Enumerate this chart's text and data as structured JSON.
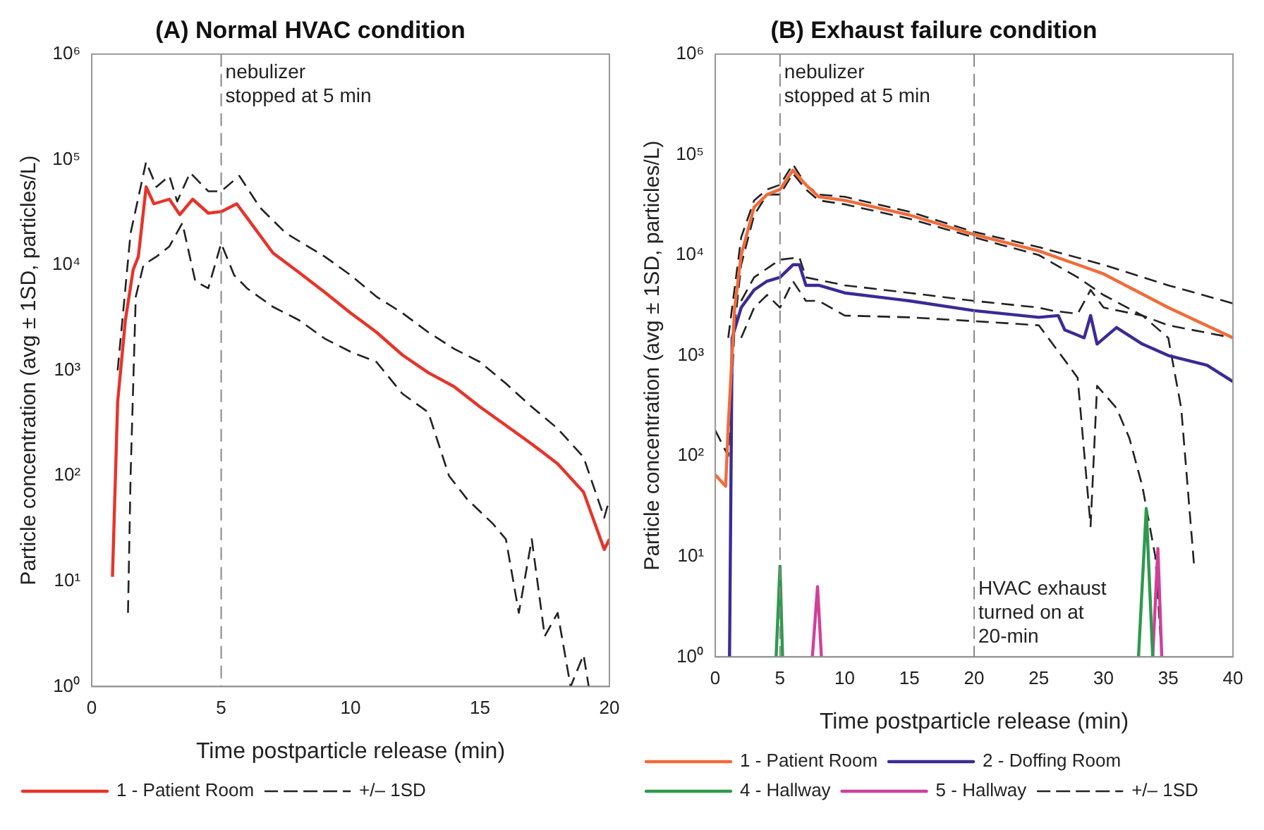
{
  "chart_data": [
    {
      "type": "line",
      "title": "(A) Normal HVAC condition",
      "xlabel": "Time postparticle release (min)",
      "ylabel": "Particle concentration (avg ± 1SD, particles/L)",
      "log": "y",
      "grid": false,
      "legend": "bottom",
      "marker": "none",
      "xlim": [
        0,
        20
      ],
      "xticks": [
        0,
        5,
        10,
        15,
        20
      ],
      "ylim": [
        1,
        1000000
      ],
      "yticks": [
        {
          "value": 1,
          "label": "10⁰"
        },
        {
          "value": 10,
          "label": "10¹"
        },
        {
          "value": 100,
          "label": "10²"
        },
        {
          "value": 1000,
          "label": "10³"
        },
        {
          "value": 10000,
          "label": "10⁴"
        },
        {
          "value": 100000,
          "label": "10⁵"
        },
        {
          "value": 1000000,
          "label": "10⁶"
        }
      ],
      "ref_lines": [
        {
          "axis": "x",
          "value": 5,
          "label": "nebulizer stopped at 5 min",
          "color": "#888888",
          "line_style": "dashed"
        }
      ],
      "series": [
        {
          "name": "1 - Patient Room",
          "color": "#e8332a",
          "line_style": "solid",
          "x": [
            0.8,
            1.0,
            1.3,
            1.6,
            1.8,
            2.1,
            2.4,
            3.0,
            3.4,
            3.9,
            4.5,
            5.0,
            5.6,
            6.0,
            7,
            8,
            9,
            10,
            11,
            12,
            13,
            14,
            15,
            16,
            17,
            18,
            19,
            19.8,
            20
          ],
          "values": [
            11,
            500,
            3000,
            9000,
            12000,
            55000,
            38000,
            42000,
            30000,
            42000,
            31000,
            32000,
            38000,
            28000,
            13000,
            8500,
            5500,
            3500,
            2300,
            1400,
            950,
            700,
            450,
            300,
            200,
            130,
            70,
            20,
            25
          ]
        },
        {
          "name": "+/– 1SD",
          "color": "#222222",
          "line_style": "dashed",
          "x": [
            1.0,
            1.5,
            2.1,
            2.5,
            3.0,
            3.3,
            3.8,
            4.5,
            5,
            5.7,
            6.5,
            7.5,
            9,
            10,
            11,
            12,
            13,
            14,
            15,
            16,
            17,
            18,
            19,
            19.8,
            20
          ],
          "values": [
            1000,
            20000,
            95000,
            55000,
            70000,
            40000,
            75000,
            50000,
            50000,
            70000,
            35000,
            20000,
            12000,
            8000,
            5000,
            3500,
            2300,
            1600,
            1200,
            750,
            450,
            280,
            150,
            40,
            60
          ]
        },
        {
          "color": "#222222",
          "line_style": "dashed",
          "x": [
            1.4,
            1.5,
            1.7,
            2,
            2.5,
            3,
            3.5,
            4,
            4.5,
            5,
            5.5,
            6,
            7,
            8,
            9,
            10,
            11,
            12,
            13,
            13.8,
            14.5,
            15.5,
            16,
            16.5,
            17,
            17.5,
            18,
            18.5,
            19,
            19.2
          ],
          "values": [
            5,
            100,
            5000,
            10000,
            12000,
            15000,
            25000,
            7000,
            6000,
            16000,
            8000,
            6000,
            4000,
            3000,
            2000,
            1500,
            1200,
            600,
            400,
            100,
            60,
            35,
            25,
            5,
            25,
            3,
            5,
            1,
            2,
            1
          ]
        }
      ]
    },
    {
      "type": "line",
      "title": "(B) Exhaust failure condition",
      "xlabel": "Time postparticle release (min)",
      "ylabel": "Particle concentration (avg ± 1SD, particles/L)",
      "log": "y",
      "grid": false,
      "legend": "bottom",
      "marker": "none",
      "xlim": [
        0,
        40
      ],
      "xticks": [
        0,
        5,
        10,
        15,
        20,
        25,
        30,
        35,
        40
      ],
      "ylim": [
        1,
        1000000
      ],
      "yticks": [
        {
          "value": 1,
          "label": "10⁰"
        },
        {
          "value": 10,
          "label": "10¹"
        },
        {
          "value": 100,
          "label": "10²"
        },
        {
          "value": 1000,
          "label": "10³"
        },
        {
          "value": 10000,
          "label": "10⁴"
        },
        {
          "value": 100000,
          "label": "10⁵"
        },
        {
          "value": 1000000,
          "label": "10⁶"
        }
      ],
      "ref_lines": [
        {
          "axis": "x",
          "value": 5,
          "label": "nebulizer stopped at 5 min",
          "color": "#888888",
          "line_style": "dashed"
        },
        {
          "axis": "x",
          "value": 20,
          "label": "HVAC exhaust turned on at 20-min",
          "color": "#888888",
          "line_style": "dashed"
        }
      ],
      "series": [
        {
          "name": "1 - Patient Room",
          "color": "#f26b3a",
          "line_style": "solid",
          "x": [
            0,
            0.8,
            1,
            1.5,
            2,
            3,
            4,
            5,
            6,
            7,
            8,
            10,
            15,
            20,
            25,
            30,
            35,
            40
          ],
          "values": [
            65,
            50,
            200,
            3000,
            10000,
            30000,
            40000,
            45000,
            70000,
            50000,
            38000,
            35000,
            25000,
            16000,
            11000,
            6500,
            3000,
            1500
          ]
        },
        {
          "name": "2 - Doffing Room",
          "color": "#3b2a96",
          "line_style": "solid",
          "x": [
            1.1,
            1.3,
            2,
            3,
            4,
            5,
            6,
            6.5,
            7,
            8,
            10,
            15,
            20,
            25,
            26.5,
            27,
            28.5,
            29,
            29.5,
            31,
            33,
            35,
            38,
            40
          ],
          "values": [
            1,
            1500,
            3000,
            4500,
            5500,
            6000,
            8000,
            8000,
            5000,
            5000,
            4200,
            3500,
            2800,
            2400,
            2500,
            1800,
            1500,
            2500,
            1300,
            1900,
            1300,
            1000,
            800,
            550
          ]
        },
        {
          "name": "4 - Hallway",
          "color": "#2e9a4e",
          "line_style": "solid",
          "x": [
            4.7,
            5,
            5.2,
            20,
            32.7,
            33.3,
            33.8
          ],
          "values": [
            1,
            8,
            1,
            null,
            1,
            30,
            1
          ]
        },
        {
          "name": "5 - Hallway",
          "color": "#d0409a",
          "line_style": "solid",
          "x": [
            7.5,
            7.9,
            8.2,
            20,
            33.8,
            34.2,
            34.5
          ],
          "values": [
            1,
            5,
            1,
            null,
            1,
            12,
            1
          ]
        },
        {
          "name": "+/– 1SD",
          "color": "#222222",
          "line_style": "dashed",
          "x": [
            1,
            2,
            3,
            4,
            5,
            6,
            7,
            8,
            10,
            15,
            20,
            25,
            30,
            35,
            40
          ],
          "values": [
            1500,
            15000,
            35000,
            45000,
            50000,
            80000,
            50000,
            40000,
            38000,
            27000,
            17000,
            12000,
            8000,
            5000,
            3300
          ]
        },
        {
          "color": "#222222",
          "line_style": "dashed",
          "x": [
            0,
            1,
            1.5,
            2,
            3,
            4,
            5,
            6,
            7,
            8,
            10,
            15,
            20,
            25,
            28,
            30,
            33,
            35,
            40
          ],
          "values": [
            180,
            100,
            2000,
            8000,
            25000,
            40000,
            40000,
            65000,
            45000,
            35000,
            32000,
            23000,
            15000,
            10000,
            6000,
            4000,
            2500,
            2000,
            1500
          ]
        },
        {
          "color": "#222222",
          "line_style": "dashed",
          "x": [
            2,
            3,
            5,
            6.5,
            7,
            10,
            15,
            20,
            25,
            26,
            28,
            29,
            30,
            33,
            35,
            36,
            37
          ],
          "values": [
            3500,
            6000,
            9000,
            9500,
            6000,
            5000,
            4200,
            3500,
            3000,
            2800,
            2600,
            4500,
            3000,
            2500,
            1500,
            300,
            8
          ]
        },
        {
          "color": "#222222",
          "line_style": "dashed",
          "x": [
            2,
            3,
            4,
            5,
            6,
            7,
            8,
            10,
            15,
            20,
            25,
            27,
            28,
            29,
            29.5,
            31,
            32,
            33,
            34,
            34.5
          ],
          "values": [
            1500,
            3000,
            4000,
            3000,
            5500,
            3500,
            3500,
            2500,
            2400,
            2200,
            2000,
            900,
            600,
            20,
            500,
            300,
            150,
            50,
            10,
            1
          ]
        }
      ]
    }
  ]
}
